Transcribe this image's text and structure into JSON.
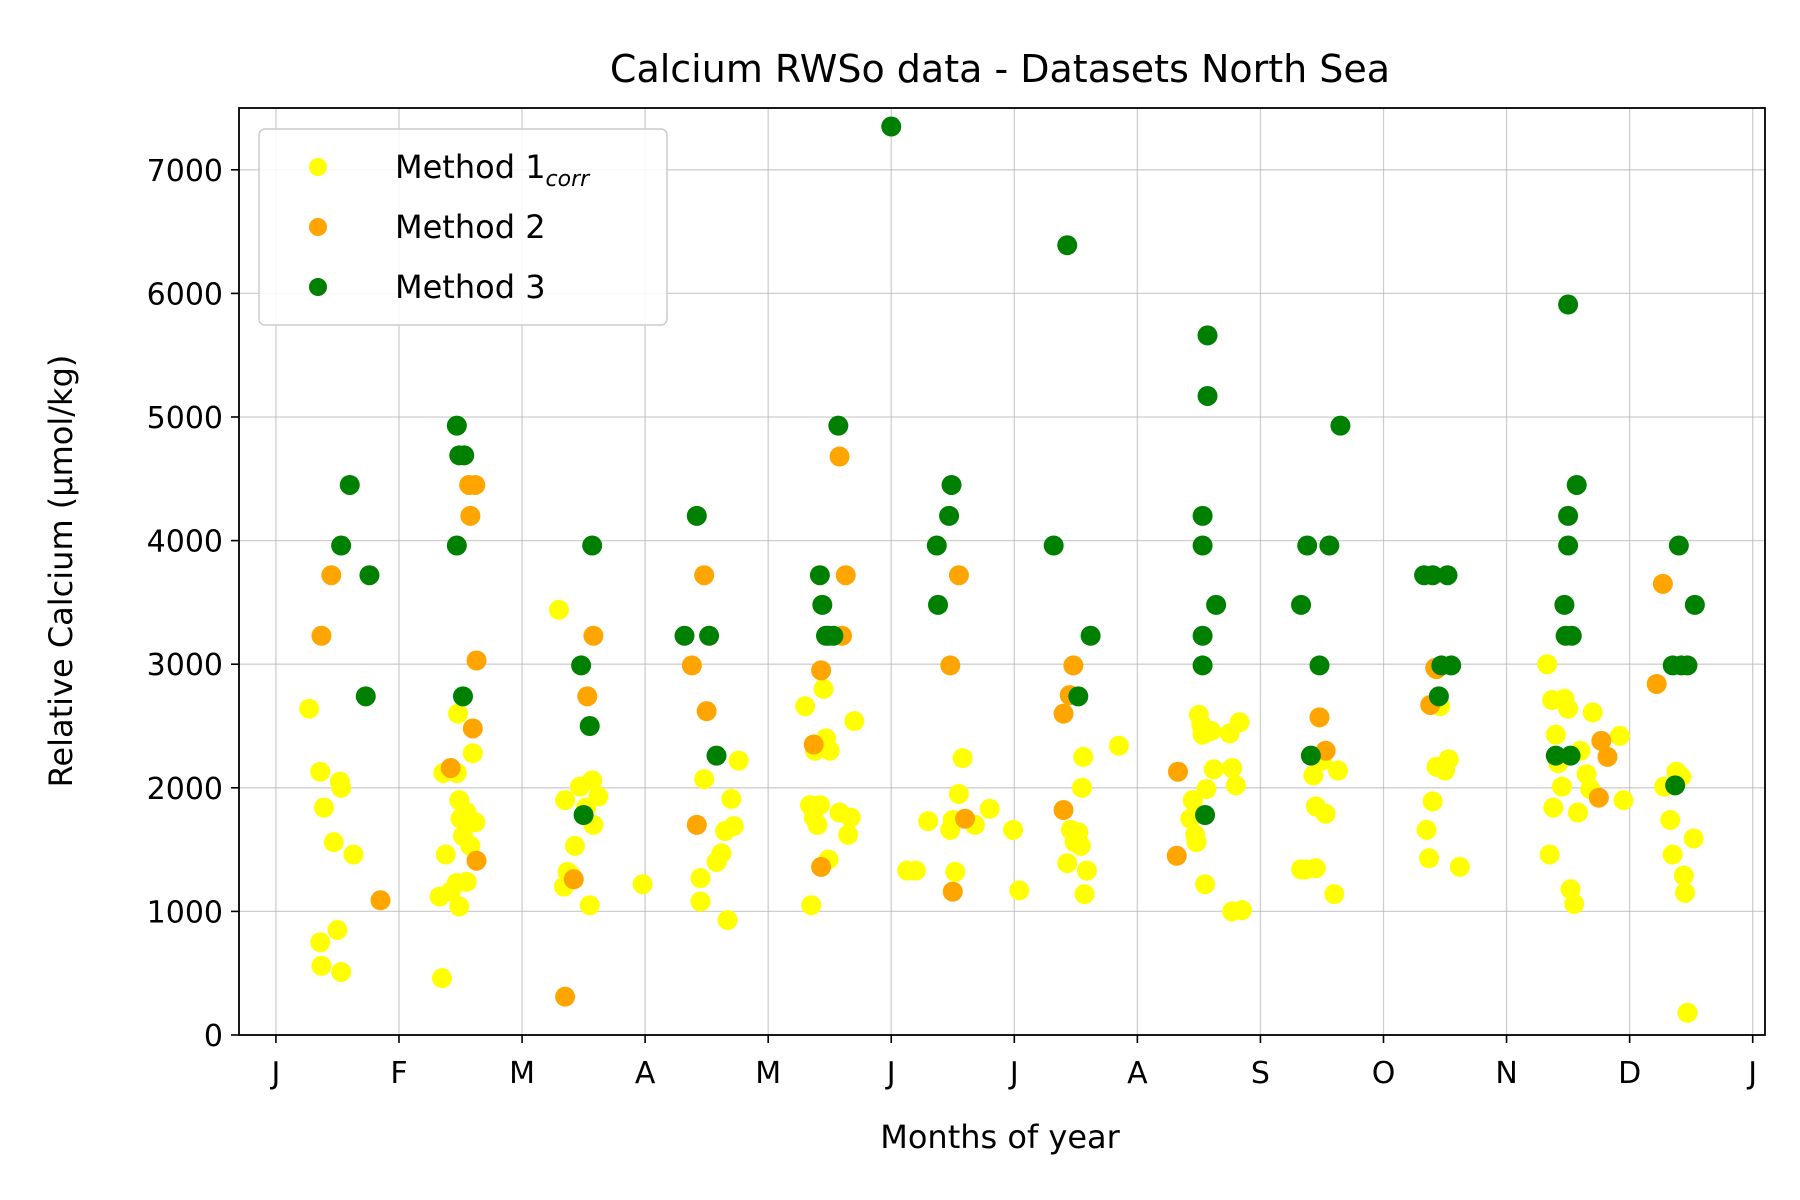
{
  "chart_data": {
    "type": "scatter",
    "title": "Calcium RWSo data - Datasets North Sea",
    "xlabel": "Months of year",
    "ylabel": "Relative Calcium (µmol/kg)",
    "xlim": [
      -0.3,
      12.1
    ],
    "ylim": [
      0,
      7500
    ],
    "grid": true,
    "legend_position": "top-left",
    "x_tick_values": [
      0,
      1,
      2,
      3,
      4,
      5,
      6,
      7,
      8,
      9,
      10,
      11,
      12
    ],
    "x_tick_labels": [
      "J",
      "F",
      "M",
      "A",
      "M",
      "J",
      "J",
      "A",
      "S",
      "O",
      "N",
      "D",
      "J"
    ],
    "y_ticks": [
      0,
      1000,
      2000,
      3000,
      4000,
      5000,
      6000,
      7000
    ],
    "series": [
      {
        "name": "Method 1",
        "name_subscript": "corr",
        "color": "#ffff00",
        "points": [
          [
            0.27,
            2640
          ],
          [
            0.36,
            2130
          ],
          [
            0.39,
            1840
          ],
          [
            0.47,
            1560
          ],
          [
            0.52,
            2050
          ],
          [
            0.53,
            2000
          ],
          [
            0.63,
            1460
          ],
          [
            0.36,
            750
          ],
          [
            0.37,
            560
          ],
          [
            0.5,
            850
          ],
          [
            0.53,
            510
          ],
          [
            1.33,
            1120
          ],
          [
            1.38,
            1460
          ],
          [
            1.36,
            2120
          ],
          [
            1.35,
            460
          ],
          [
            1.47,
            2120
          ],
          [
            1.49,
            1900
          ],
          [
            1.5,
            1750
          ],
          [
            1.52,
            1610
          ],
          [
            1.55,
            1800
          ],
          [
            1.62,
            1720
          ],
          [
            1.6,
            2280
          ],
          [
            1.47,
            1230
          ],
          [
            1.49,
            1040
          ],
          [
            1.48,
            2600
          ],
          [
            1.55,
            1240
          ],
          [
            1.58,
            1530
          ],
          [
            1.42,
            1160
          ],
          [
            2.3,
            3440
          ],
          [
            2.35,
            1900
          ],
          [
            2.34,
            1200
          ],
          [
            2.4,
            1290
          ],
          [
            2.43,
            1530
          ],
          [
            2.47,
            2010
          ],
          [
            2.52,
            1840
          ],
          [
            2.58,
            1700
          ],
          [
            2.62,
            1930
          ],
          [
            2.57,
            2060
          ],
          [
            2.55,
            1050
          ],
          [
            2.37,
            1320
          ],
          [
            2.98,
            1220
          ],
          [
            3.45,
            1080
          ],
          [
            3.45,
            1270
          ],
          [
            3.48,
            2070
          ],
          [
            3.58,
            1400
          ],
          [
            3.62,
            1470
          ],
          [
            3.65,
            1650
          ],
          [
            3.7,
            1910
          ],
          [
            3.72,
            1690
          ],
          [
            3.76,
            2220
          ],
          [
            3.67,
            930
          ],
          [
            4.3,
            2660
          ],
          [
            4.34,
            1860
          ],
          [
            4.37,
            1760
          ],
          [
            4.38,
            2300
          ],
          [
            4.42,
            1860
          ],
          [
            4.45,
            2800
          ],
          [
            4.47,
            2400
          ],
          [
            4.5,
            2300
          ],
          [
            4.58,
            1800
          ],
          [
            4.67,
            1760
          ],
          [
            4.65,
            1620
          ],
          [
            4.7,
            2540
          ],
          [
            4.49,
            1420
          ],
          [
            4.35,
            1050
          ],
          [
            4.4,
            1700
          ],
          [
            5.13,
            1330
          ],
          [
            5.2,
            1330
          ],
          [
            5.3,
            1730
          ],
          [
            5.48,
            1660
          ],
          [
            5.5,
            1740
          ],
          [
            5.52,
            1320
          ],
          [
            5.55,
            1950
          ],
          [
            5.58,
            2240
          ],
          [
            5.68,
            1700
          ],
          [
            5.8,
            1830
          ],
          [
            5.99,
            1660
          ],
          [
            6.04,
            1170
          ],
          [
            6.43,
            1390
          ],
          [
            6.46,
            1660
          ],
          [
            6.49,
            1560
          ],
          [
            6.52,
            1640
          ],
          [
            6.54,
            1530
          ],
          [
            6.55,
            2000
          ],
          [
            6.56,
            2250
          ],
          [
            6.57,
            1140
          ],
          [
            6.59,
            1330
          ],
          [
            6.85,
            2340
          ],
          [
            7.43,
            1750
          ],
          [
            7.45,
            1900
          ],
          [
            7.47,
            1620
          ],
          [
            7.48,
            1560
          ],
          [
            7.5,
            2590
          ],
          [
            7.52,
            2510
          ],
          [
            7.53,
            2430
          ],
          [
            7.56,
            1990
          ],
          [
            7.55,
            1220
          ],
          [
            7.6,
            2460
          ],
          [
            7.62,
            2150
          ],
          [
            7.75,
            2440
          ],
          [
            7.77,
            2160
          ],
          [
            7.8,
            2020
          ],
          [
            7.83,
            2530
          ],
          [
            7.77,
            1000
          ],
          [
            7.85,
            1010
          ],
          [
            8.33,
            1340
          ],
          [
            8.37,
            1340
          ],
          [
            8.45,
            1350
          ],
          [
            8.45,
            1850
          ],
          [
            8.43,
            2100
          ],
          [
            8.5,
            2220
          ],
          [
            8.53,
            1790
          ],
          [
            8.6,
            1140
          ],
          [
            8.63,
            2140
          ],
          [
            9.35,
            1660
          ],
          [
            9.37,
            1430
          ],
          [
            9.4,
            1890
          ],
          [
            9.43,
            2170
          ],
          [
            9.46,
            2660
          ],
          [
            9.5,
            2140
          ],
          [
            9.53,
            2230
          ],
          [
            9.62,
            1360
          ],
          [
            10.33,
            3000
          ],
          [
            10.37,
            2710
          ],
          [
            10.35,
            1460
          ],
          [
            10.38,
            1840
          ],
          [
            10.4,
            2430
          ],
          [
            10.42,
            2200
          ],
          [
            10.45,
            2010
          ],
          [
            10.47,
            2720
          ],
          [
            10.5,
            2640
          ],
          [
            10.52,
            1180
          ],
          [
            10.55,
            1060
          ],
          [
            10.58,
            1800
          ],
          [
            10.6,
            2300
          ],
          [
            10.65,
            2110
          ],
          [
            10.68,
            1990
          ],
          [
            10.7,
            2610
          ],
          [
            10.92,
            2420
          ],
          [
            10.95,
            1900
          ],
          [
            11.28,
            2010
          ],
          [
            11.33,
            1740
          ],
          [
            11.35,
            1460
          ],
          [
            11.38,
            2130
          ],
          [
            11.42,
            2090
          ],
          [
            11.44,
            1290
          ],
          [
            11.45,
            1150
          ],
          [
            11.47,
            180
          ],
          [
            11.52,
            1590
          ]
        ]
      },
      {
        "name": "Method 2",
        "color": "#ffa500",
        "points": [
          [
            0.37,
            3230
          ],
          [
            0.45,
            3720
          ],
          [
            0.85,
            1090
          ],
          [
            1.42,
            2160
          ],
          [
            1.57,
            4450
          ],
          [
            1.58,
            4200
          ],
          [
            1.62,
            4450
          ],
          [
            1.63,
            3030
          ],
          [
            1.6,
            2480
          ],
          [
            1.63,
            1410
          ],
          [
            2.35,
            310
          ],
          [
            2.42,
            1260
          ],
          [
            2.53,
            2740
          ],
          [
            2.58,
            3230
          ],
          [
            3.38,
            2990
          ],
          [
            3.42,
            1700
          ],
          [
            3.48,
            3720
          ],
          [
            3.5,
            2620
          ],
          [
            4.37,
            2350
          ],
          [
            4.43,
            2950
          ],
          [
            4.43,
            1360
          ],
          [
            4.58,
            4680
          ],
          [
            4.6,
            3230
          ],
          [
            4.63,
            3720
          ],
          [
            5.48,
            2990
          ],
          [
            5.5,
            1160
          ],
          [
            5.55,
            3720
          ],
          [
            5.6,
            1750
          ],
          [
            6.4,
            1820
          ],
          [
            6.4,
            2600
          ],
          [
            6.45,
            2750
          ],
          [
            6.48,
            2990
          ],
          [
            7.33,
            2130
          ],
          [
            7.32,
            1450
          ],
          [
            8.48,
            2570
          ],
          [
            8.53,
            2300
          ],
          [
            9.38,
            2670
          ],
          [
            9.42,
            2970
          ],
          [
            9.43,
            2960
          ],
          [
            10.75,
            1920
          ],
          [
            10.77,
            2380
          ],
          [
            10.82,
            2250
          ],
          [
            11.22,
            2840
          ],
          [
            11.27,
            3650
          ]
        ]
      },
      {
        "name": "Method 3",
        "color": "#008000",
        "points": [
          [
            0.53,
            3960
          ],
          [
            0.6,
            4450
          ],
          [
            0.73,
            2740
          ],
          [
            0.76,
            3720
          ],
          [
            1.47,
            4930
          ],
          [
            1.49,
            4690
          ],
          [
            1.53,
            4690
          ],
          [
            1.47,
            3960
          ],
          [
            1.52,
            2740
          ],
          [
            2.48,
            2990
          ],
          [
            2.5,
            1780
          ],
          [
            2.55,
            2500
          ],
          [
            2.57,
            3960
          ],
          [
            3.32,
            3230
          ],
          [
            3.42,
            4200
          ],
          [
            3.52,
            3230
          ],
          [
            3.58,
            2260
          ],
          [
            4.42,
            3720
          ],
          [
            4.44,
            3480
          ],
          [
            4.47,
            3230
          ],
          [
            4.49,
            3230
          ],
          [
            4.53,
            3230
          ],
          [
            4.57,
            4930
          ],
          [
            5.0,
            7350
          ],
          [
            5.37,
            3960
          ],
          [
            5.38,
            3480
          ],
          [
            5.47,
            4200
          ],
          [
            5.49,
            4450
          ],
          [
            6.32,
            3960
          ],
          [
            6.43,
            6390
          ],
          [
            6.52,
            2740
          ],
          [
            6.62,
            3230
          ],
          [
            7.53,
            4200
          ],
          [
            7.53,
            3960
          ],
          [
            7.53,
            3230
          ],
          [
            7.53,
            2990
          ],
          [
            7.55,
            1780
          ],
          [
            7.57,
            5660
          ],
          [
            7.57,
            5170
          ],
          [
            7.64,
            3480
          ],
          [
            8.33,
            3480
          ],
          [
            8.38,
            3960
          ],
          [
            8.41,
            2260
          ],
          [
            8.48,
            2990
          ],
          [
            8.56,
            3960
          ],
          [
            8.65,
            4930
          ],
          [
            9.33,
            3720
          ],
          [
            9.4,
            3720
          ],
          [
            9.45,
            2740
          ],
          [
            9.47,
            2990
          ],
          [
            9.52,
            3720
          ],
          [
            9.55,
            2990
          ],
          [
            10.4,
            2260
          ],
          [
            10.47,
            3480
          ],
          [
            10.48,
            3230
          ],
          [
            10.5,
            5910
          ],
          [
            10.5,
            4200
          ],
          [
            10.5,
            3960
          ],
          [
            10.52,
            2260
          ],
          [
            10.53,
            3230
          ],
          [
            10.57,
            4450
          ],
          [
            11.35,
            2990
          ],
          [
            11.37,
            2020
          ],
          [
            11.4,
            3960
          ],
          [
            11.42,
            2990
          ],
          [
            11.47,
            2990
          ],
          [
            11.53,
            3480
          ]
        ]
      }
    ]
  }
}
